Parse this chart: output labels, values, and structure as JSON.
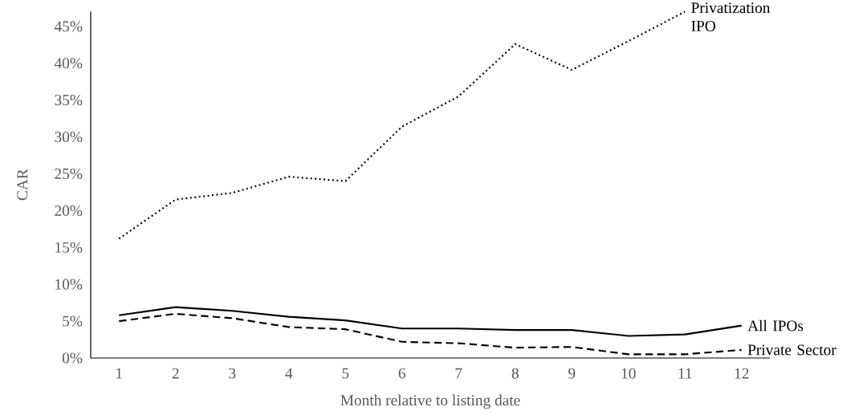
{
  "chart_data": {
    "type": "line",
    "xlabel": "Month relative to listing date",
    "ylabel": "CAR",
    "categories": [
      "1",
      "2",
      "3",
      "4",
      "5",
      "6",
      "7",
      "8",
      "9",
      "10",
      "11",
      "12"
    ],
    "series": [
      {
        "name": "Privatization IPO",
        "color": "#000000",
        "line_style": "dotted",
        "values": [
          16.2,
          21.5,
          22.4,
          24.6,
          24.0,
          31.4,
          35.5,
          42.6,
          39.1,
          43.0,
          47.0,
          null
        ]
      },
      {
        "name": "All IPOs",
        "color": "#000000",
        "line_style": "solid",
        "values": [
          5.8,
          6.9,
          6.4,
          5.6,
          5.1,
          4.0,
          4.0,
          3.8,
          3.8,
          3.0,
          3.2,
          4.4
        ]
      },
      {
        "name": "Private Sector",
        "color": "#000000",
        "line_style": "dashed",
        "values": [
          5.0,
          6.0,
          5.4,
          4.2,
          3.9,
          2.2,
          2.0,
          1.4,
          1.5,
          0.5,
          0.5,
          1.1
        ]
      }
    ],
    "ylim": [
      0,
      47
    ],
    "yticks": [
      {
        "value": 0,
        "label": "0%"
      },
      {
        "value": 5,
        "label": "5%"
      },
      {
        "value": 10,
        "label": "10%"
      },
      {
        "value": 15,
        "label": "15%"
      },
      {
        "value": 20,
        "label": "20%"
      },
      {
        "value": 25,
        "label": "25%"
      },
      {
        "value": 30,
        "label": "30%"
      },
      {
        "value": 35,
        "label": "35%"
      },
      {
        "value": 40,
        "label": "40%"
      },
      {
        "value": 45,
        "label": "45%"
      }
    ],
    "marker": "none"
  }
}
